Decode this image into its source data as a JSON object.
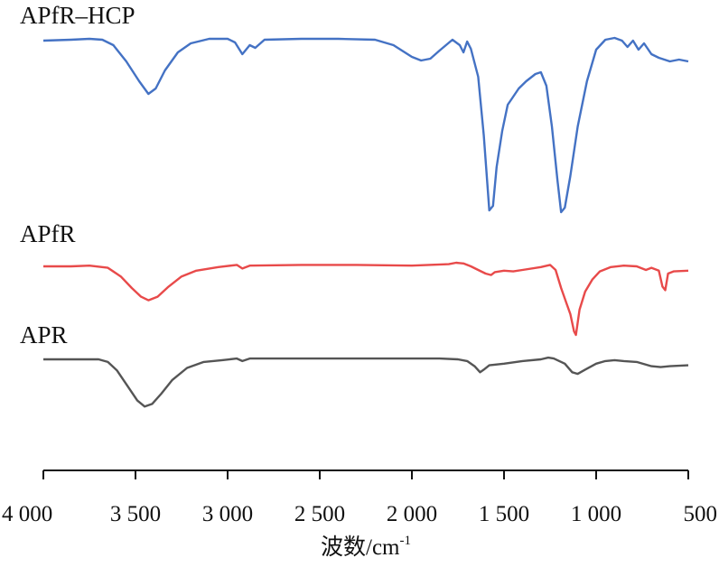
{
  "chart_data": {
    "type": "line",
    "title": "",
    "xlabel": "波数/cm",
    "xlabel_superscript": "-1",
    "ylabel": "",
    "x_reversed": true,
    "xlim": [
      4000,
      500
    ],
    "xticks": [
      4000,
      3500,
      3000,
      2500,
      2000,
      1500,
      1000,
      500
    ],
    "xtick_labels": [
      "4 000",
      "3 500",
      "3 000",
      "2 500",
      "2 000",
      "1 500",
      "1 000",
      "500"
    ],
    "y_axis_shown": false,
    "grid": false,
    "legend": "none (curves labelled directly)",
    "series": [
      {
        "name": "APfR–HCP",
        "color": "#4472C4",
        "offset": 0.78,
        "points": [
          [
            4000,
            0.95
          ],
          [
            3850,
            0.96
          ],
          [
            3750,
            0.97
          ],
          [
            3680,
            0.96
          ],
          [
            3620,
            0.9
          ],
          [
            3550,
            0.72
          ],
          [
            3480,
            0.5
          ],
          [
            3430,
            0.36
          ],
          [
            3390,
            0.42
          ],
          [
            3340,
            0.62
          ],
          [
            3270,
            0.82
          ],
          [
            3200,
            0.92
          ],
          [
            3100,
            0.97
          ],
          [
            3000,
            0.97
          ],
          [
            2960,
            0.93
          ],
          [
            2920,
            0.8
          ],
          [
            2880,
            0.9
          ],
          [
            2850,
            0.87
          ],
          [
            2800,
            0.96
          ],
          [
            2600,
            0.97
          ],
          [
            2400,
            0.97
          ],
          [
            2200,
            0.96
          ],
          [
            2100,
            0.9
          ],
          [
            2000,
            0.77
          ],
          [
            1950,
            0.73
          ],
          [
            1900,
            0.75
          ],
          [
            1850,
            0.84
          ],
          [
            1780,
            0.96
          ],
          [
            1740,
            0.9
          ],
          [
            1720,
            0.82
          ],
          [
            1700,
            0.94
          ],
          [
            1680,
            0.86
          ],
          [
            1640,
            0.55
          ],
          [
            1610,
            -0.1
          ],
          [
            1580,
            -0.93
          ],
          [
            1560,
            -0.88
          ],
          [
            1540,
            -0.45
          ],
          [
            1510,
            -0.05
          ],
          [
            1480,
            0.24
          ],
          [
            1460,
            0.3
          ],
          [
            1420,
            0.42
          ],
          [
            1380,
            0.5
          ],
          [
            1330,
            0.58
          ],
          [
            1300,
            0.6
          ],
          [
            1270,
            0.45
          ],
          [
            1240,
            0.0
          ],
          [
            1210,
            -0.6
          ],
          [
            1190,
            -0.95
          ],
          [
            1170,
            -0.9
          ],
          [
            1140,
            -0.55
          ],
          [
            1100,
            0.0
          ],
          [
            1050,
            0.5
          ],
          [
            1000,
            0.85
          ],
          [
            950,
            0.96
          ],
          [
            900,
            0.98
          ],
          [
            860,
            0.95
          ],
          [
            830,
            0.88
          ],
          [
            800,
            0.95
          ],
          [
            770,
            0.85
          ],
          [
            740,
            0.92
          ],
          [
            700,
            0.8
          ],
          [
            660,
            0.76
          ],
          [
            600,
            0.72
          ],
          [
            550,
            0.74
          ],
          [
            500,
            0.72
          ]
        ]
      },
      {
        "name": "APfR",
        "color": "#E84A4A",
        "offset": 0.0,
        "points": [
          [
            4000,
            0.0
          ],
          [
            3850,
            0.0
          ],
          [
            3750,
            0.01
          ],
          [
            3650,
            -0.02
          ],
          [
            3580,
            -0.14
          ],
          [
            3520,
            -0.3
          ],
          [
            3470,
            -0.42
          ],
          [
            3430,
            -0.47
          ],
          [
            3380,
            -0.42
          ],
          [
            3320,
            -0.28
          ],
          [
            3250,
            -0.14
          ],
          [
            3170,
            -0.06
          ],
          [
            3050,
            -0.01
          ],
          [
            2950,
            0.02
          ],
          [
            2920,
            -0.03
          ],
          [
            2880,
            0.01
          ],
          [
            2600,
            0.02
          ],
          [
            2300,
            0.02
          ],
          [
            2000,
            0.01
          ],
          [
            1800,
            0.03
          ],
          [
            1760,
            0.05
          ],
          [
            1720,
            0.04
          ],
          [
            1680,
            0.0
          ],
          [
            1640,
            -0.05
          ],
          [
            1600,
            -0.1
          ],
          [
            1570,
            -0.12
          ],
          [
            1550,
            -0.08
          ],
          [
            1500,
            -0.06
          ],
          [
            1450,
            -0.07
          ],
          [
            1400,
            -0.05
          ],
          [
            1300,
            -0.01
          ],
          [
            1250,
            0.02
          ],
          [
            1220,
            -0.05
          ],
          [
            1190,
            -0.3
          ],
          [
            1160,
            -0.52
          ],
          [
            1140,
            -0.66
          ],
          [
            1120,
            -0.9
          ],
          [
            1110,
            -0.95
          ],
          [
            1090,
            -0.6
          ],
          [
            1060,
            -0.35
          ],
          [
            1020,
            -0.18
          ],
          [
            980,
            -0.07
          ],
          [
            920,
            -0.01
          ],
          [
            850,
            0.01
          ],
          [
            780,
            0.0
          ],
          [
            730,
            -0.05
          ],
          [
            700,
            -0.02
          ],
          [
            660,
            -0.06
          ],
          [
            640,
            -0.28
          ],
          [
            625,
            -0.33
          ],
          [
            610,
            -0.1
          ],
          [
            580,
            -0.07
          ],
          [
            500,
            -0.06
          ]
        ]
      },
      {
        "name": "APR",
        "color": "#555555",
        "offset": -0.45,
        "points": [
          [
            4000,
            0.0
          ],
          [
            3850,
            0.0
          ],
          [
            3700,
            0.0
          ],
          [
            3650,
            -0.03
          ],
          [
            3600,
            -0.13
          ],
          [
            3540,
            -0.32
          ],
          [
            3490,
            -0.48
          ],
          [
            3450,
            -0.55
          ],
          [
            3410,
            -0.52
          ],
          [
            3360,
            -0.4
          ],
          [
            3300,
            -0.24
          ],
          [
            3220,
            -0.1
          ],
          [
            3130,
            -0.03
          ],
          [
            3030,
            -0.01
          ],
          [
            2950,
            0.01
          ],
          [
            2920,
            -0.02
          ],
          [
            2880,
            0.01
          ],
          [
            2600,
            0.01
          ],
          [
            2300,
            0.01
          ],
          [
            2000,
            0.01
          ],
          [
            1850,
            0.01
          ],
          [
            1750,
            0.0
          ],
          [
            1700,
            -0.02
          ],
          [
            1660,
            -0.08
          ],
          [
            1630,
            -0.15
          ],
          [
            1610,
            -0.12
          ],
          [
            1580,
            -0.07
          ],
          [
            1500,
            -0.05
          ],
          [
            1400,
            -0.02
          ],
          [
            1300,
            0.0
          ],
          [
            1260,
            0.02
          ],
          [
            1230,
            0.01
          ],
          [
            1170,
            -0.05
          ],
          [
            1130,
            -0.15
          ],
          [
            1100,
            -0.17
          ],
          [
            1060,
            -0.12
          ],
          [
            1000,
            -0.05
          ],
          [
            950,
            -0.02
          ],
          [
            900,
            -0.01
          ],
          [
            850,
            -0.02
          ],
          [
            780,
            -0.03
          ],
          [
            700,
            -0.08
          ],
          [
            650,
            -0.09
          ],
          [
            600,
            -0.08
          ],
          [
            500,
            -0.07
          ]
        ]
      }
    ]
  }
}
